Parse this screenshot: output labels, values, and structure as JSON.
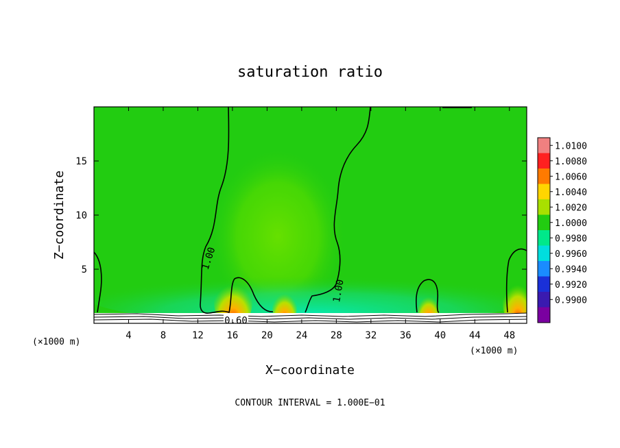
{
  "chart_data": {
    "type": "heatmap",
    "title": "saturation ratio",
    "xlabel": "X−coordinate",
    "ylabel": "Z−coordinate",
    "x_unit_left": "(×1000 m)",
    "x_unit_right": "(×1000 m)",
    "xlim": [
      0,
      50
    ],
    "ylim": [
      0,
      20
    ],
    "x_ticks": [
      4,
      8,
      12,
      16,
      20,
      24,
      28,
      32,
      36,
      40,
      44,
      48
    ],
    "y_ticks": [
      5,
      10,
      15
    ],
    "colorbar": {
      "levels": [
        "1.0100",
        "1.0080",
        "1.0060",
        "1.0040",
        "1.0020",
        "1.0000",
        "0.9980",
        "0.9960",
        "0.9940",
        "0.9920",
        "0.9900"
      ],
      "colors": [
        "#f08080",
        "#ff2020",
        "#ff7a00",
        "#ffd500",
        "#a8e000",
        "#22cc11",
        "#00e88a",
        "#00dede",
        "#1a8cff",
        "#1a30d8",
        "#3a1ab0",
        "#7a00a0"
      ]
    },
    "contour_labels": [
      {
        "text": "1.00",
        "x": 13.2,
        "z": 6.0,
        "angle": -72
      },
      {
        "text": "1.00",
        "x": 28.2,
        "z": 3.0,
        "angle": -80
      },
      {
        "text": "0.60",
        "x": 16.4,
        "z": 0.3,
        "angle": 0
      }
    ],
    "hotspots": [
      {
        "x": 16.2,
        "z": 0.5,
        "level": 1.008
      },
      {
        "x": 22.0,
        "z": 0.5,
        "level": 1.006
      },
      {
        "x": 38.6,
        "z": 0.5,
        "level": 1.006
      },
      {
        "x": 49.0,
        "z": 0.5,
        "level": 1.008
      }
    ],
    "footnote": "CONTOUR INTERVAL = 1.000E−01",
    "grid": false
  }
}
